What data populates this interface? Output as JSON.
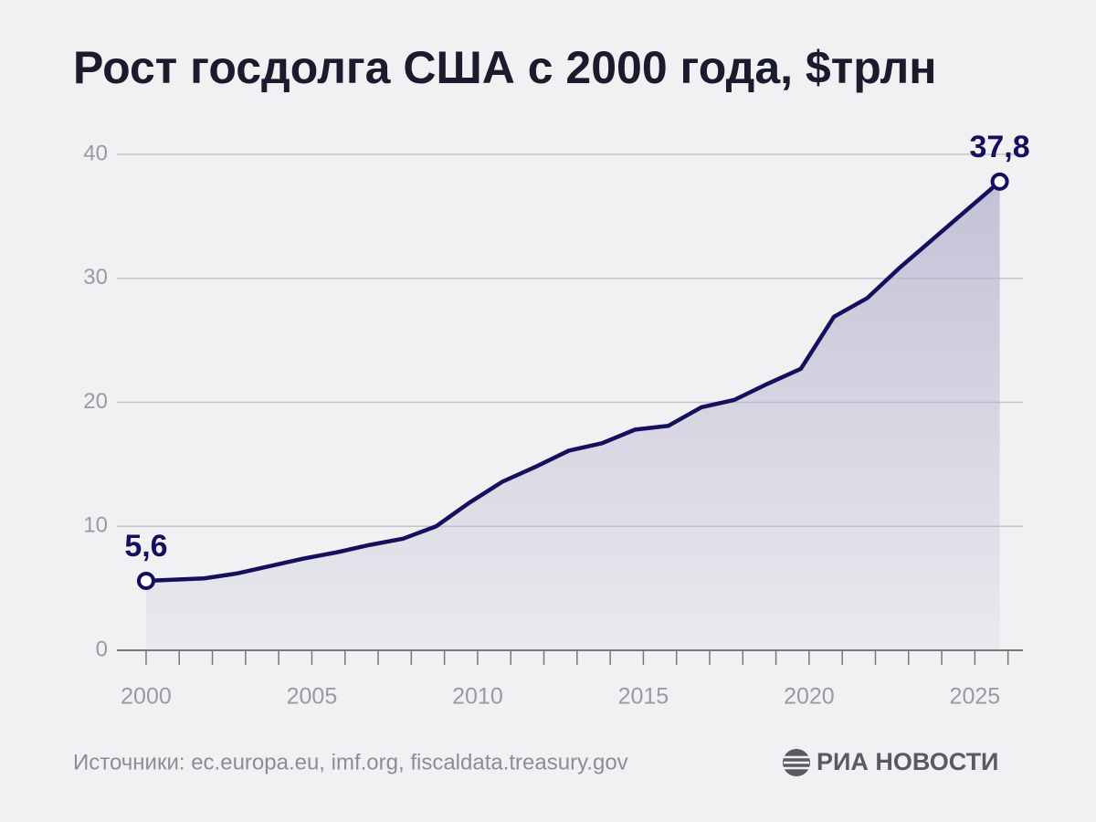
{
  "chart_data": {
    "type": "area",
    "title": "Рост госдолга США с 2000 года, $трлн",
    "source": "Источники: ec.europa.eu, imf.org, fiscaldata.treasury.gov",
    "brand": "РИА НОВОСТИ",
    "x": [
      2000,
      2001.75,
      2002.75,
      2003.75,
      2004.75,
      2005.75,
      2006.75,
      2007.75,
      2008.75,
      2009.75,
      2010.75,
      2011.75,
      2012.75,
      2013.75,
      2014.75,
      2015.75,
      2016.75,
      2017.75,
      2018.75,
      2019.75,
      2020.75,
      2021.75,
      2022.75,
      2023.75,
      2024.75,
      2025.75
    ],
    "values": [
      5.6,
      5.8,
      6.2,
      6.8,
      7.4,
      7.9,
      8.5,
      9.0,
      10.0,
      11.9,
      13.6,
      14.8,
      16.1,
      16.7,
      17.8,
      18.1,
      19.6,
      20.2,
      21.5,
      22.7,
      26.9,
      28.4,
      30.9,
      33.2,
      35.5,
      37.8
    ],
    "value_labels": [
      "5,6",
      null,
      null,
      null,
      null,
      null,
      null,
      null,
      null,
      null,
      null,
      null,
      null,
      null,
      null,
      null,
      null,
      null,
      null,
      null,
      null,
      null,
      null,
      null,
      null,
      "37,8"
    ],
    "color": "#14105e",
    "fill_color": "#b4b1cc",
    "xlim": [
      1999.45,
      2026.45
    ],
    "xticks": [
      2000,
      2005,
      2010,
      2015,
      2020,
      2025
    ],
    "xminorticks": [
      2001,
      2002,
      2003,
      2004,
      2006,
      2007,
      2008,
      2009,
      2011,
      2012,
      2013,
      2014,
      2016,
      2017,
      2018,
      2019,
      2021,
      2022,
      2023,
      2024,
      2026
    ],
    "ylim": [
      0,
      40
    ],
    "yticks": [
      0,
      10,
      20,
      30,
      40
    ],
    "grid": true
  }
}
